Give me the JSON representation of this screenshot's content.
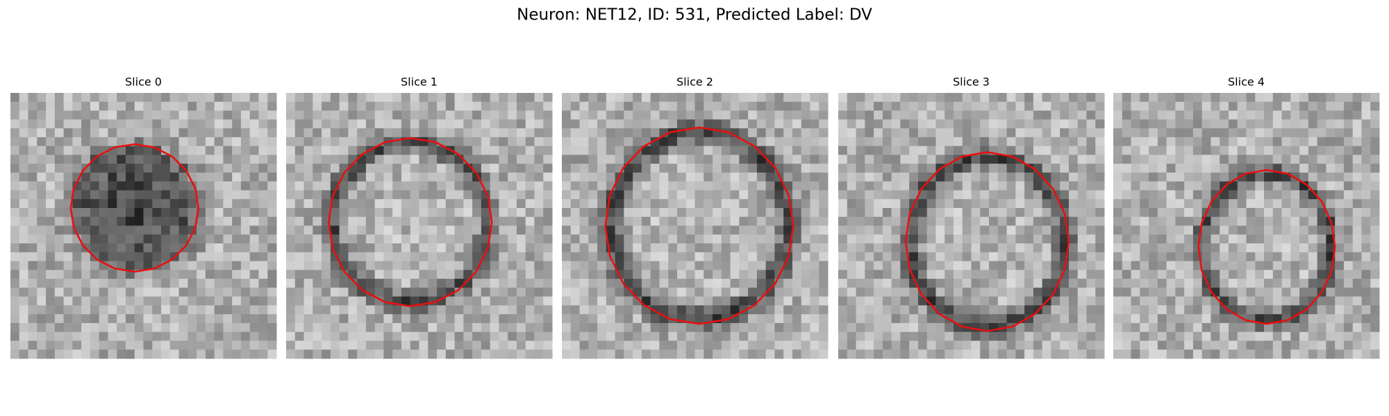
{
  "title": "Neuron: NET12, ID: 531, Predicted Label: DV",
  "panels": [
    {
      "title": "Slice 0"
    },
    {
      "title": "Slice 1"
    },
    {
      "title": "Slice 2"
    },
    {
      "title": "Slice 3"
    },
    {
      "title": "Slice 4"
    }
  ]
}
